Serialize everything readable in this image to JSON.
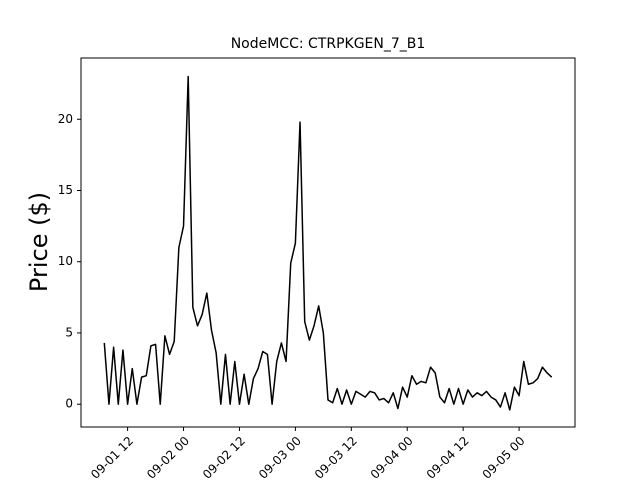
{
  "chart_data": {
    "type": "line",
    "title": "NodeMCC: CTRPKGEN_7_B1",
    "y_label": "Price ($)",
    "x": [
      "09-01 07",
      "09-01 08",
      "09-01 09",
      "09-01 10",
      "09-01 11",
      "09-01 12",
      "09-01 13",
      "09-01 14",
      "09-01 15",
      "09-01 16",
      "09-01 17",
      "09-01 18",
      "09-01 19",
      "09-01 20",
      "09-01 21",
      "09-01 22",
      "09-01 23",
      "09-02 00",
      "09-02 01",
      "09-02 02",
      "09-02 03",
      "09-02 04",
      "09-02 05",
      "09-02 06",
      "09-02 07",
      "09-02 08",
      "09-02 09",
      "09-02 10",
      "09-02 11",
      "09-02 12",
      "09-02 13",
      "09-02 14",
      "09-02 15",
      "09-02 16",
      "09-02 17",
      "09-02 18",
      "09-02 19",
      "09-02 20",
      "09-02 21",
      "09-02 22",
      "09-02 23",
      "09-03 00",
      "09-03 01",
      "09-03 02",
      "09-03 03",
      "09-03 04",
      "09-03 05",
      "09-03 06",
      "09-03 07",
      "09-03 08",
      "09-03 09",
      "09-03 10",
      "09-03 11",
      "09-03 12",
      "09-03 13",
      "09-03 14",
      "09-03 15",
      "09-03 16",
      "09-03 17",
      "09-03 18",
      "09-03 19",
      "09-03 20",
      "09-03 21",
      "09-03 22",
      "09-03 23",
      "09-04 00",
      "09-04 01",
      "09-04 02",
      "09-04 03",
      "09-04 04",
      "09-04 05",
      "09-04 06",
      "09-04 07",
      "09-04 08",
      "09-04 09",
      "09-04 10",
      "09-04 11",
      "09-04 12",
      "09-04 13",
      "09-04 14",
      "09-04 15",
      "09-04 16",
      "09-04 17",
      "09-04 18",
      "09-04 19",
      "09-04 20",
      "09-04 21",
      "09-04 22",
      "09-04 23",
      "09-05 00",
      "09-05 01",
      "09-05 02",
      "09-05 03",
      "09-05 04",
      "09-05 05",
      "09-05 06",
      "09-05 07"
    ],
    "series": [
      {
        "name": "CTRPKGEN_7_B1",
        "color": "#000000",
        "values": [
          4.3,
          0,
          4.0,
          0,
          3.8,
          0,
          2.5,
          0,
          1.9,
          2.0,
          4.1,
          4.2,
          0,
          4.8,
          3.5,
          4.4,
          11.0,
          12.5,
          23.0,
          6.8,
          5.5,
          6.3,
          7.8,
          5.2,
          3.6,
          0,
          3.5,
          0,
          3.0,
          0,
          2.1,
          0,
          1.8,
          2.5,
          3.7,
          3.5,
          0,
          3.0,
          4.3,
          3.0,
          9.9,
          11.3,
          19.8,
          5.8,
          4.5,
          5.5,
          6.9,
          5.0,
          0.3,
          0.1,
          1.1,
          0,
          1.0,
          0,
          0.9,
          0.7,
          0.5,
          0.9,
          0.8,
          0.3,
          0.4,
          0.1,
          0.8,
          -0.3,
          1.2,
          0.5,
          2.0,
          1.4,
          1.6,
          1.5,
          2.6,
          2.2,
          0.5,
          0.1,
          1.1,
          0,
          1.1,
          0,
          1.0,
          0.5,
          0.8,
          0.6,
          0.9,
          0.5,
          0.3,
          -0.2,
          0.8,
          -0.4,
          1.2,
          0.6,
          3.0,
          1.4,
          1.5,
          1.8,
          2.6,
          2.2,
          1.9
        ]
      }
    ],
    "xlim": [
      "09-01 02",
      "09-05 12"
    ],
    "xticks": [
      "09-01 12",
      "09-02 00",
      "09-02 12",
      "09-03 00",
      "09-03 12",
      "09-04 00",
      "09-04 12",
      "09-05 00"
    ],
    "ylim": [
      -1.6,
      24.3
    ],
    "yticks": [
      0,
      5,
      10,
      15,
      20
    ],
    "grid": false
  }
}
